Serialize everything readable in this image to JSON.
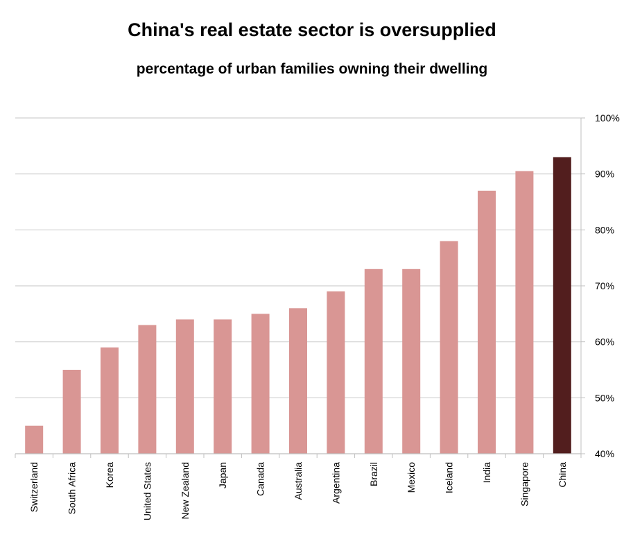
{
  "chart_data": {
    "type": "bar",
    "title": "China's real estate sector is oversupplied",
    "subtitle": "percentage of urban families owning their dwelling",
    "categories": [
      "Switzerland",
      "South Africa",
      "Korea",
      "United States",
      "New Zealand",
      "Japan",
      "Canada",
      "Australia",
      "Argentina",
      "Brazil",
      "Mexico",
      "Iceland",
      "India",
      "Singapore",
      "China"
    ],
    "values": [
      45,
      55,
      59,
      63,
      64,
      64,
      65,
      66,
      69,
      73,
      73,
      78,
      87,
      90.5,
      93
    ],
    "ylim": [
      40,
      100
    ],
    "yticks": [
      "40%",
      "50%",
      "60%",
      "70%",
      "80%",
      "90%",
      "100%"
    ],
    "ytick_values": [
      40,
      50,
      60,
      70,
      80,
      90,
      100
    ],
    "y_axis_side": "right",
    "grid": true,
    "colors": {
      "bar": "#d99694",
      "highlight": "#521e1e",
      "grid": "#d0d0d0",
      "axis": "#bfbfbf"
    },
    "highlight_category": "China"
  }
}
